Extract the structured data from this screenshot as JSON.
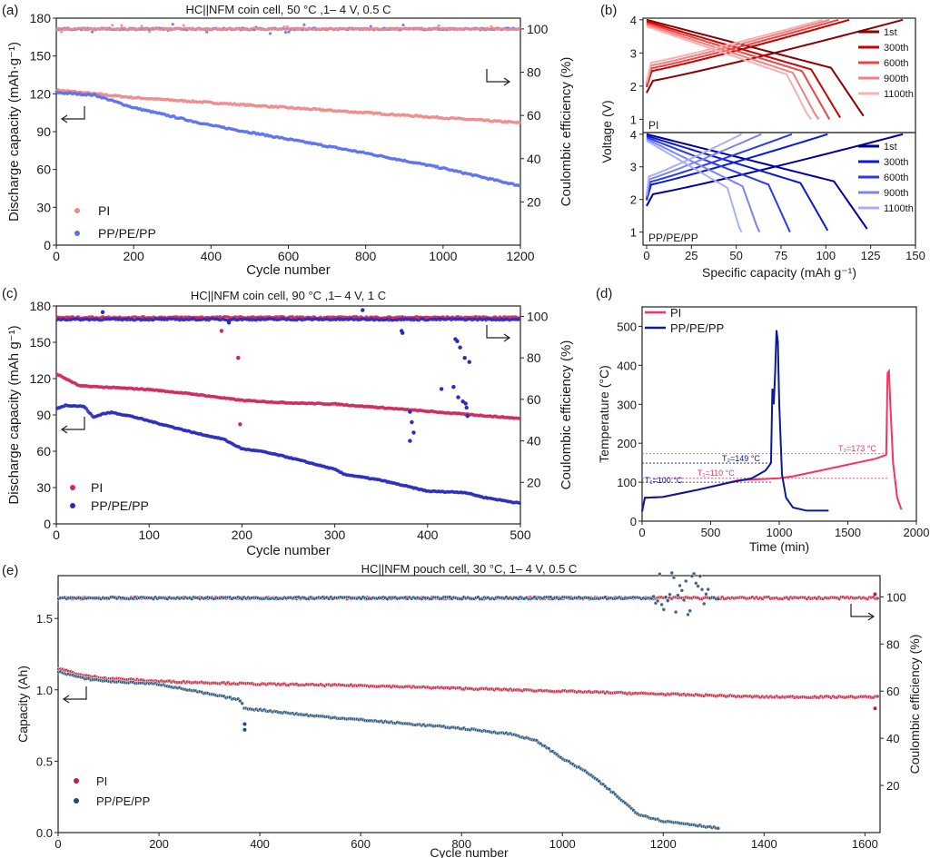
{
  "figure": {
    "panel_labels": [
      "(a)",
      "(b)",
      "(c)",
      "(d)",
      "(e)"
    ]
  },
  "colors": {
    "pi_a": "#f08a8a",
    "pp_a": "#5b6ff0",
    "pi_c": "#d02a5a",
    "pp_c": "#2a2ac0",
    "pi_e": "#c0203c",
    "pp_e": "#1f4a72",
    "pi_d": "#ff3060",
    "pp_d": "#0a1a9a",
    "pi_b": [
      "#8b0000",
      "#cc0000",
      "#ee4444",
      "#f48080",
      "#f8b0b0"
    ],
    "pp_b": [
      "#0000a0",
      "#0a1ad8",
      "#2a3af0",
      "#7a84f4",
      "#aab0f8"
    ]
  },
  "chart_data": [
    {
      "id": "a",
      "type": "scatter",
      "title": "HC||NFM coin cell, 50 °C ,1– 4 V, 0.5 C",
      "xlabel": "Cycle number",
      "ylabel": "Discharge capacity (mAh·g⁻¹)",
      "y2label": "Coulombic efficiency (%)",
      "xlim": [
        0,
        1200
      ],
      "ylim": [
        0,
        180
      ],
      "y2lim": [
        0,
        105
      ],
      "xticks": [
        0,
        200,
        400,
        600,
        800,
        1000,
        1200
      ],
      "yticks": [
        0,
        30,
        60,
        90,
        120,
        150,
        180
      ],
      "y2ticks": [
        20,
        40,
        60,
        80,
        100
      ],
      "legend": [
        "PI",
        "PP/PE/PP"
      ],
      "legend_position": "bottom-left",
      "series": [
        {
          "name": "PI",
          "kind": "capacity",
          "x": [
            0,
            100,
            200,
            400,
            600,
            800,
            1000,
            1200
          ],
          "y": [
            123,
            120,
            117,
            113,
            109,
            105,
            101,
            97
          ]
        },
        {
          "name": "PP/PE/PP",
          "kind": "capacity",
          "x": [
            0,
            100,
            200,
            300,
            400,
            600,
            800,
            1000,
            1200
          ],
          "y": [
            121,
            119,
            109,
            102,
            95,
            84,
            73,
            61,
            47
          ]
        },
        {
          "name": "PI",
          "kind": "ce",
          "x": [
            0,
            1200
          ],
          "y": [
            100,
            100
          ]
        },
        {
          "name": "PP/PE/PP",
          "kind": "ce",
          "x": [
            0,
            1200
          ],
          "y": [
            100,
            100
          ]
        }
      ]
    },
    {
      "id": "b",
      "type": "line",
      "xlabel": "Specific capacity (mAh g⁻¹)",
      "ylabel": "Voltage (V)",
      "xlim": [
        -2,
        150
      ],
      "ylim": [
        0.5,
        4.1
      ],
      "xticks": [
        0,
        25,
        50,
        75,
        100,
        125,
        150
      ],
      "yticks": [
        1,
        2,
        3,
        4
      ],
      "subplots": [
        {
          "label": "PI",
          "legend": [
            "1st",
            "300th",
            "600th",
            "900th",
            "1100th"
          ],
          "charge_capacity": [
            143,
            113,
            107,
            102,
            98
          ],
          "discharge_capacity": [
            121,
            108,
            102,
            96,
            92
          ]
        },
        {
          "label": "PP/PE/PP",
          "legend": [
            "1st",
            "300th",
            "600th",
            "900th",
            "1100th"
          ],
          "charge_capacity": [
            143,
            101,
            81,
            64,
            53
          ],
          "discharge_capacity": [
            123,
            101,
            80,
            63,
            53
          ]
        }
      ]
    },
    {
      "id": "c",
      "type": "scatter",
      "title": "HC||NFM coin cell, 90 °C ,1– 4 V, 1 C",
      "xlabel": "Cycle number",
      "ylabel": "Discharge capacity (mAh g⁻¹)",
      "y2label": "Coulombic efficiency (%)",
      "xlim": [
        0,
        500
      ],
      "ylim": [
        0,
        180
      ],
      "y2lim": [
        0,
        105
      ],
      "xticks": [
        0,
        100,
        200,
        300,
        400,
        500
      ],
      "yticks": [
        0,
        30,
        60,
        90,
        120,
        150,
        180
      ],
      "y2ticks": [
        20,
        40,
        60,
        80,
        100
      ],
      "legend": [
        "PI",
        "PP/PE/PP"
      ],
      "legend_position": "bottom-left",
      "series": [
        {
          "name": "PI",
          "kind": "capacity",
          "x": [
            0,
            25,
            50,
            100,
            150,
            200,
            250,
            300,
            350,
            400,
            450,
            500
          ],
          "y": [
            124,
            114,
            113,
            111,
            107,
            102,
            100,
            99,
            96,
            93,
            90,
            87
          ]
        },
        {
          "name": "PP/PE/PP",
          "kind": "capacity",
          "x": [
            0,
            10,
            30,
            40,
            50,
            60,
            80,
            100,
            150,
            180,
            200,
            220,
            250,
            300,
            310,
            350,
            400,
            440,
            460,
            500
          ],
          "y": [
            95,
            98,
            97,
            88,
            91,
            92,
            89,
            85,
            75,
            70,
            62,
            60,
            55,
            45,
            41,
            36,
            27,
            26,
            22,
            17
          ]
        },
        {
          "name": "PI",
          "kind": "ce",
          "x": [
            0,
            500
          ],
          "y": [
            99.5,
            99.5
          ]
        },
        {
          "name": "PP/PE/PP",
          "kind": "ce",
          "x": [
            0,
            500
          ],
          "y": [
            98.5,
            98.5
          ]
        }
      ]
    },
    {
      "id": "d",
      "type": "line",
      "xlabel": "Time (min)",
      "ylabel": "Temperature (°C)",
      "xlim": [
        0,
        2000
      ],
      "ylim": [
        0,
        550
      ],
      "xticks": [
        0,
        500,
        1000,
        1500,
        2000
      ],
      "yticks": [
        0,
        100,
        200,
        300,
        400,
        500
      ],
      "legend": [
        "PI",
        "PP/PE/PP"
      ],
      "legend_position": "top-left",
      "series": [
        {
          "name": "PI",
          "x": [
            0,
            20,
            150,
            400,
            700,
            1000,
            1100,
            1300,
            1500,
            1700,
            1780,
            1790,
            1800,
            1810,
            1830,
            1860,
            1890
          ],
          "y": [
            25,
            60,
            62,
            80,
            105,
            110,
            115,
            130,
            145,
            160,
            170,
            380,
            385,
            300,
            150,
            60,
            30
          ]
        },
        {
          "name": "PP/PE/PP",
          "x": [
            0,
            20,
            150,
            400,
            650,
            800,
            900,
            940,
            950,
            960,
            970,
            980,
            990,
            1000,
            1020,
            1050,
            1100,
            1200,
            1360
          ],
          "y": [
            25,
            60,
            62,
            80,
            100,
            110,
            130,
            149,
            340,
            300,
            380,
            490,
            460,
            300,
            120,
            60,
            35,
            27,
            27
          ]
        }
      ],
      "annotations": [
        {
          "text": "T₁=100 °C",
          "series": "PP/PE/PP",
          "value": 100
        },
        {
          "text": "T₂=149 °C",
          "series": "PP/PE/PP",
          "value": 149
        },
        {
          "text": "T₁=110 °C",
          "series": "PI",
          "value": 110
        },
        {
          "text": "T₂=173 °C",
          "series": "PI",
          "value": 173
        }
      ]
    },
    {
      "id": "e",
      "type": "scatter",
      "title": "HC||NFM pouch cell, 30 °C,  1– 4 V, 0.5 C",
      "xlabel": "Cycle number",
      "ylabel": "Capacity (Ah)",
      "y2label": "Coulombic efficiency (%)",
      "xlim": [
        0,
        1630
      ],
      "ylim": [
        0,
        1.8
      ],
      "y2lim": [
        0,
        109
      ],
      "xticks": [
        0,
        200,
        400,
        600,
        800,
        1000,
        1200,
        1400,
        1600
      ],
      "yticks": [
        0.0,
        0.5,
        1.0,
        1.5
      ],
      "y2ticks": [
        20,
        40,
        60,
        80,
        100
      ],
      "legend": [
        "PI",
        "PP/PE/PP"
      ],
      "legend_position": "bottom-left",
      "series": [
        {
          "name": "PI",
          "kind": "capacity",
          "x": [
            0,
            50,
            100,
            200,
            400,
            600,
            800,
            1000,
            1200,
            1400,
            1600,
            1625
          ],
          "y": [
            1.15,
            1.1,
            1.08,
            1.06,
            1.04,
            1.03,
            1.01,
            0.99,
            0.97,
            0.95,
            0.95,
            0.95
          ]
        },
        {
          "name": "PP/PE/PP",
          "kind": "capacity",
          "x": [
            0,
            50,
            100,
            200,
            300,
            360,
            370,
            400,
            500,
            600,
            700,
            800,
            900,
            950,
            1000,
            1050,
            1100,
            1150,
            1200,
            1250,
            1310
          ],
          "y": [
            1.13,
            1.08,
            1.06,
            1.04,
            0.97,
            0.93,
            0.87,
            0.86,
            0.82,
            0.79,
            0.76,
            0.73,
            0.69,
            0.64,
            0.52,
            0.42,
            0.28,
            0.13,
            0.08,
            0.06,
            0.03
          ]
        },
        {
          "name": "PI",
          "kind": "ce",
          "x": [
            0,
            1625
          ],
          "y": [
            99.5,
            99.5
          ]
        },
        {
          "name": "PP/PE/PP",
          "kind": "ce",
          "x": [
            0,
            1310
          ],
          "y": [
            99.5,
            99.5
          ]
        }
      ]
    }
  ]
}
